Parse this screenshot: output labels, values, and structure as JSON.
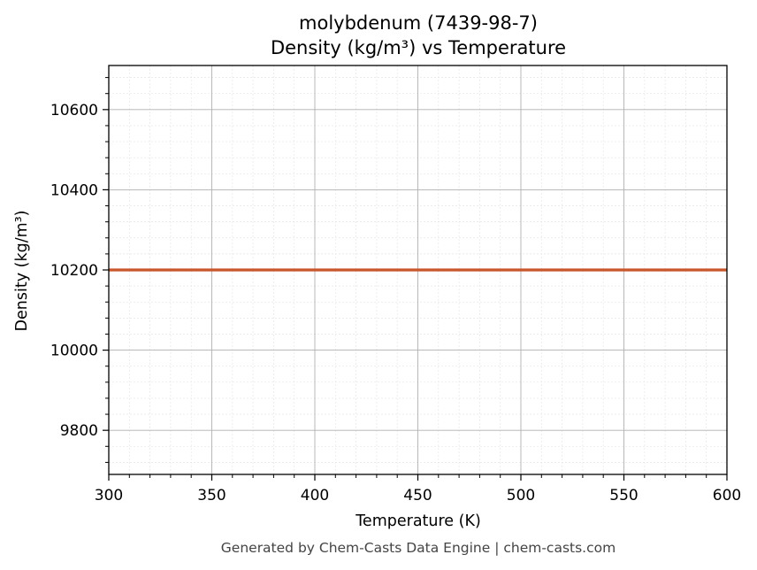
{
  "chart_data": {
    "type": "line",
    "title": "molybdenum (7439-98-7)",
    "subtitle": "Density (kg/m³) vs Temperature",
    "xlabel": "Temperature (K)",
    "ylabel": "Density (kg/m³)",
    "xlim": [
      300,
      600
    ],
    "ylim": [
      9690,
      10710
    ],
    "x_ticks": [
      300,
      350,
      400,
      450,
      500,
      550,
      600
    ],
    "y_ticks": [
      9800,
      10000,
      10200,
      10400,
      10600
    ],
    "grid": true,
    "series": [
      {
        "x": [
          300,
          600
        ],
        "y": [
          10200,
          10200
        ],
        "color": "#c8562a"
      }
    ]
  },
  "footer": "Generated by Chem-Casts Data Engine | chem-casts.com"
}
